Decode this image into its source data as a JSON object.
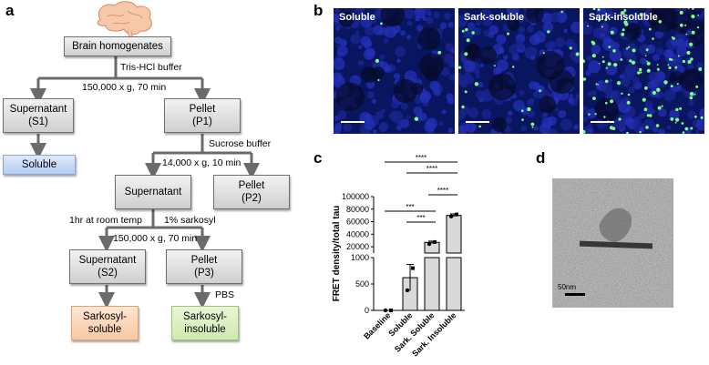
{
  "panels": {
    "a": "a",
    "b": "b",
    "c": "c",
    "d": "d"
  },
  "flowchart": {
    "start": "Brain homogenates",
    "step1": "Tris-HCl buffer",
    "spin1": "150,000 x g, 70 min",
    "s1": "Supernatant\n(S1)",
    "p1": "Pellet\n(P1)",
    "soluble": "Soluble",
    "step2": "Sucrose buffer",
    "spin2": "14,000 x g, 10 min",
    "supernatant": "Supernatant",
    "p2": "Pellet\n(P2)",
    "step3a": "1hr at room temp",
    "step3b": "1% sarkosyl",
    "spin3": "150,000 x g, 70 min",
    "s2": "Supernatant\n(S2)",
    "p3": "Pellet\n(P3)",
    "step4": "PBS",
    "sark_soluble": "Sarkosyl-\nsoluble",
    "sark_insoluble": "Sarkosyl-\ninsoluble"
  },
  "micrographs": [
    {
      "label": "Soluble",
      "density": 5
    },
    {
      "label": "Sark-soluble",
      "density": 25
    },
    {
      "label": "Sark-insoluble",
      "density": 120
    }
  ],
  "chart_data": {
    "type": "bar",
    "ylabel": "FRET density/total tau",
    "categories": [
      "Baseline",
      "Soluble",
      "Sark. Soluble",
      "Sark. Insoluble"
    ],
    "values": [
      0,
      620,
      27000,
      70000
    ],
    "errors": [
      0,
      250,
      2000,
      2500
    ],
    "points": [
      [
        0,
        0
      ],
      [
        380,
        800
      ],
      [
        24500,
        27500
      ],
      [
        68500,
        71500
      ]
    ],
    "ylim_lower": [
      0,
      1000
    ],
    "ylim_upper": [
      0,
      100000
    ],
    "yticks_lower": [
      "0",
      "500",
      "1000"
    ],
    "yticks_upper": [
      "20000",
      "40000",
      "60000",
      "80000",
      "100000"
    ],
    "significance": [
      {
        "from": 0,
        "to": 3,
        "label": "****"
      },
      {
        "from": 1,
        "to": 3,
        "label": "****"
      },
      {
        "from": 0,
        "to": 2,
        "label": "***"
      },
      {
        "from": 1,
        "to": 2,
        "label": "***"
      },
      {
        "from": 2,
        "to": 3,
        "label": "****"
      }
    ]
  },
  "em": {
    "scale_label": "50nm"
  }
}
